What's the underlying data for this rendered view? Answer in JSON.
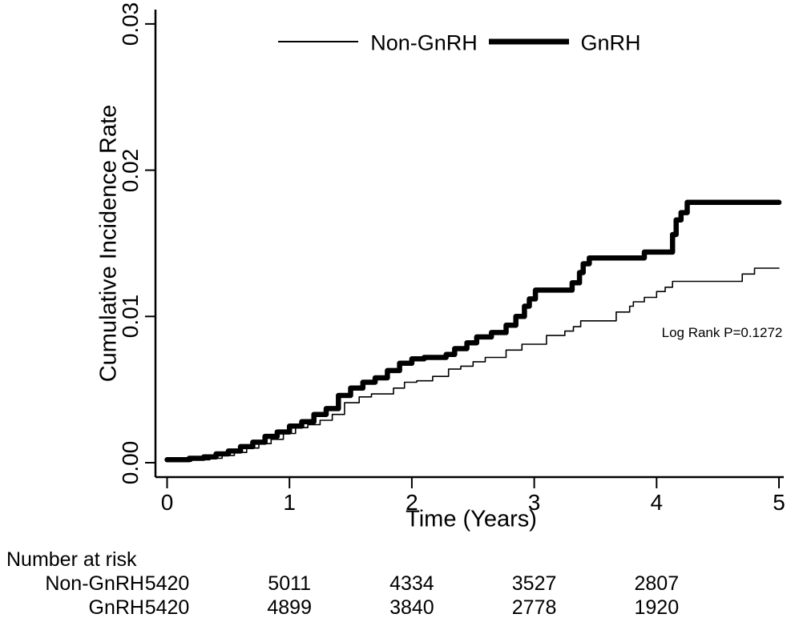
{
  "figure": {
    "background": "#ffffff",
    "line_color": "#000000",
    "text_color": "#000000"
  },
  "legend": {
    "position": "top-center",
    "items": [
      {
        "label": "Non-GnRH",
        "style": "thin-line"
      },
      {
        "label": "GnRH",
        "style": "thick-line"
      }
    ]
  },
  "chart_data": {
    "type": "line",
    "subtype": "step-function-cumulative-incidence",
    "title": "",
    "xlabel": "Time (Years)",
    "ylabel": "Cumulative Incidence Rate",
    "xlim": [
      0,
      5
    ],
    "ylim": [
      0,
      0.03
    ],
    "grid": false,
    "x_ticks": [
      {
        "value": 0,
        "label": "0"
      },
      {
        "value": 1,
        "label": "1"
      },
      {
        "value": 2,
        "label": "2"
      },
      {
        "value": 3,
        "label": "3"
      },
      {
        "value": 4,
        "label": "4"
      },
      {
        "value": 5,
        "label": "5"
      }
    ],
    "y_ticks": [
      {
        "value": 0.0,
        "label": "0.00"
      },
      {
        "value": 0.01,
        "label": "0.01"
      },
      {
        "value": 0.02,
        "label": "0.02"
      },
      {
        "value": 0.03,
        "label": "0.03"
      }
    ],
    "annotations": [
      {
        "text": "Log Rank P=0.1272",
        "x": 4.53,
        "y": 0.0089
      }
    ],
    "series": [
      {
        "name": "Non-GnRH",
        "style": "thin",
        "stroke_width": 1.6,
        "points": [
          [
            0.0,
            0.0001
          ],
          [
            0.2,
            0.0002
          ],
          [
            0.35,
            0.0003
          ],
          [
            0.45,
            0.0005
          ],
          [
            0.55,
            0.0007
          ],
          [
            0.65,
            0.001
          ],
          [
            0.75,
            0.0013
          ],
          [
            0.85,
            0.0016
          ],
          [
            0.95,
            0.002
          ],
          [
            1.05,
            0.0024
          ],
          [
            1.15,
            0.0026
          ],
          [
            1.25,
            0.0029
          ],
          [
            1.35,
            0.0033
          ],
          [
            1.45,
            0.0041
          ],
          [
            1.57,
            0.0045
          ],
          [
            1.67,
            0.0047
          ],
          [
            1.85,
            0.0051
          ],
          [
            1.94,
            0.0055
          ],
          [
            2.04,
            0.0056
          ],
          [
            2.17,
            0.0059
          ],
          [
            2.3,
            0.0064
          ],
          [
            2.4,
            0.0066
          ],
          [
            2.5,
            0.0069
          ],
          [
            2.6,
            0.0072
          ],
          [
            2.77,
            0.0077
          ],
          [
            2.9,
            0.0081
          ],
          [
            3.1,
            0.0087
          ],
          [
            3.25,
            0.009
          ],
          [
            3.32,
            0.0093
          ],
          [
            3.38,
            0.0097
          ],
          [
            3.67,
            0.0103
          ],
          [
            3.78,
            0.0107
          ],
          [
            3.81,
            0.011
          ],
          [
            3.9,
            0.0113
          ],
          [
            4.0,
            0.0117
          ],
          [
            4.07,
            0.012
          ],
          [
            4.13,
            0.0124
          ],
          [
            4.7,
            0.0129
          ],
          [
            4.8,
            0.0133
          ],
          [
            5.0,
            0.0133
          ]
        ]
      },
      {
        "name": "GnRH",
        "style": "thick",
        "stroke_width": 6.5,
        "points": [
          [
            0.0,
            0.0002
          ],
          [
            0.18,
            0.0003
          ],
          [
            0.3,
            0.0004
          ],
          [
            0.4,
            0.0006
          ],
          [
            0.5,
            0.0008
          ],
          [
            0.6,
            0.0011
          ],
          [
            0.7,
            0.0014
          ],
          [
            0.8,
            0.0018
          ],
          [
            0.9,
            0.0021
          ],
          [
            1.0,
            0.0025
          ],
          [
            1.1,
            0.0028
          ],
          [
            1.2,
            0.0033
          ],
          [
            1.3,
            0.0037
          ],
          [
            1.4,
            0.0046
          ],
          [
            1.5,
            0.0051
          ],
          [
            1.6,
            0.0055
          ],
          [
            1.7,
            0.0058
          ],
          [
            1.8,
            0.0063
          ],
          [
            1.9,
            0.0068
          ],
          [
            2.0,
            0.0071
          ],
          [
            2.1,
            0.0072
          ],
          [
            2.28,
            0.0074
          ],
          [
            2.35,
            0.0078
          ],
          [
            2.45,
            0.0082
          ],
          [
            2.53,
            0.0086
          ],
          [
            2.65,
            0.0089
          ],
          [
            2.77,
            0.0094
          ],
          [
            2.85,
            0.01
          ],
          [
            2.92,
            0.0107
          ],
          [
            2.96,
            0.0112
          ],
          [
            3.01,
            0.0118
          ],
          [
            3.31,
            0.0123
          ],
          [
            3.37,
            0.013
          ],
          [
            3.4,
            0.0136
          ],
          [
            3.45,
            0.014
          ],
          [
            3.9,
            0.0144
          ],
          [
            4.13,
            0.0156
          ],
          [
            4.16,
            0.0166
          ],
          [
            4.2,
            0.0171
          ],
          [
            4.25,
            0.0178
          ],
          [
            5.0,
            0.0178
          ]
        ]
      }
    ]
  },
  "at_risk": {
    "title": "Number at risk",
    "time_points": [
      0,
      1,
      2,
      3,
      4
    ],
    "rows": [
      {
        "label": "Non-GnRH",
        "counts": [
          "5420",
          "5011",
          "4334",
          "3527",
          "2807"
        ]
      },
      {
        "label": "GnRH",
        "counts": [
          "5420",
          "4899",
          "3840",
          "2778",
          "1920"
        ]
      }
    ]
  }
}
